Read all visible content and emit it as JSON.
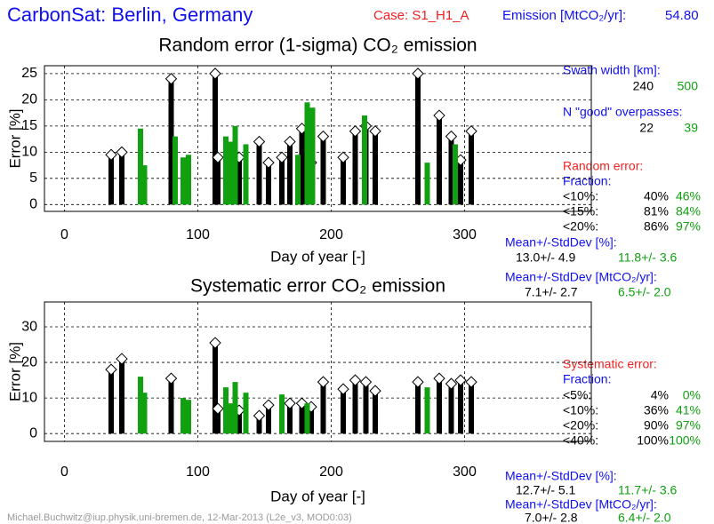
{
  "header": {
    "title": "CarbonSat: Berlin, Germany",
    "case": "Case: S1_H1_A",
    "emission_label": "Emission [MtCO₂/yr]:",
    "emission_value": "54.80"
  },
  "chart_data": [
    {
      "type": "bar",
      "title": "Random error (1-sigma) CO₂ emission",
      "xlabel": "Day of year [-]",
      "ylabel": "Error [%]",
      "xlim": [
        -15,
        395
      ],
      "xticks": [
        0,
        100,
        200,
        300
      ],
      "ylim": [
        -1.3,
        26.5
      ],
      "yticks": [
        0,
        5,
        10,
        15,
        20,
        25
      ],
      "grid": true,
      "series": [
        {
          "name": "240",
          "color": "#000000",
          "marker": "diamond",
          "x": [
            35,
            43,
            80,
            113,
            115,
            131,
            146,
            153,
            163,
            169,
            178,
            185,
            194,
            209,
            218,
            226,
            233,
            265,
            281,
            290,
            297,
            305
          ],
          "values": [
            9.5,
            10,
            24,
            25,
            9,
            9,
            12,
            8,
            9,
            12,
            14.5,
            8,
            13,
            9,
            14,
            15,
            14,
            25,
            17,
            13,
            8.5,
            14
          ]
        },
        {
          "name": "500",
          "color": "#10a010",
          "x": [
            57,
            60,
            83,
            89,
            93,
            121,
            124,
            128,
            136,
            175,
            182,
            186,
            225,
            272,
            293
          ],
          "values": [
            14.5,
            7.5,
            13,
            9,
            9.5,
            13,
            12,
            15,
            11.5,
            9.5,
            19.5,
            18.5,
            17,
            8,
            11.5
          ]
        }
      ]
    },
    {
      "type": "bar",
      "title": "Systematic error CO₂ emission",
      "xlabel": "Day of year [-]",
      "ylabel": "Error [%]",
      "xlim": [
        -15,
        395
      ],
      "xticks": [
        0,
        100,
        200,
        300
      ],
      "ylim": [
        -2.2,
        37
      ],
      "yticks": [
        0,
        10,
        20,
        30
      ],
      "grid": true,
      "series": [
        {
          "color": "#000000",
          "marker": "diamond",
          "x": [
            35,
            43,
            80,
            113,
            115,
            131,
            146,
            153,
            169,
            178,
            185,
            194,
            209,
            218,
            226,
            233,
            265,
            281,
            290,
            297,
            305
          ],
          "values": [
            18,
            21,
            15.5,
            25.5,
            7,
            6.5,
            5,
            8,
            8.5,
            8.5,
            7.5,
            14.5,
            12.5,
            15,
            14.5,
            12,
            14.5,
            15.5,
            14,
            15,
            14.5
          ]
        },
        {
          "color": "#10a010",
          "x": [
            57,
            60,
            89,
            93,
            121,
            124,
            128,
            136,
            163,
            182,
            272
          ],
          "values": [
            16,
            11.5,
            10,
            9.5,
            13,
            8.5,
            14.5,
            11.5,
            11,
            8.5,
            13
          ]
        }
      ]
    }
  ],
  "swath": {
    "label": "Swath width [km]:"
  },
  "overpasses": {
    "label": "N \"good\" overpasses:",
    "a": "22",
    "b": "39"
  },
  "random": {
    "title": "Random error:",
    "fraction": "Fraction:",
    "rows": [
      [
        "<10%:",
        "40%",
        "46%"
      ],
      [
        "<15%:",
        "81%",
        "84%"
      ],
      [
        "<20%:",
        "86%",
        "97%"
      ]
    ],
    "mean_pct_label": "Mean+/-StdDev [%]:",
    "mean_pct": [
      "13.0+/- 4.9",
      "11.8+/- 3.6"
    ],
    "mean_mt_label": "Mean+/-StdDev [MtCO₂/yr]:",
    "mean_mt": [
      "7.1+/- 2.7",
      "6.5+/- 2.0"
    ]
  },
  "systematic": {
    "title": "Systematic error:",
    "fraction": "Fraction:",
    "rows": [
      [
        "<5%:",
        "4%",
        "0%"
      ],
      [
        "<10%:",
        "36%",
        "41%"
      ],
      [
        "<20%:",
        "90%",
        "97%"
      ],
      [
        "<40%:",
        "100%",
        "100%"
      ]
    ],
    "mean_pct_label": "Mean+/-StdDev [%]:",
    "mean_pct": [
      "12.7+/- 5.1",
      "11.7+/- 3.6"
    ],
    "mean_mt_label": "Mean+/-StdDev [MtCO₂/yr]:",
    "mean_mt": [
      "7.0+/- 2.8",
      "6.4+/- 2.0"
    ]
  },
  "footer": "Michael.Buchwitz@iup.physik.uni-bremen.de, 12-Mar-2013 (L2e_v3, MOD0:03)"
}
